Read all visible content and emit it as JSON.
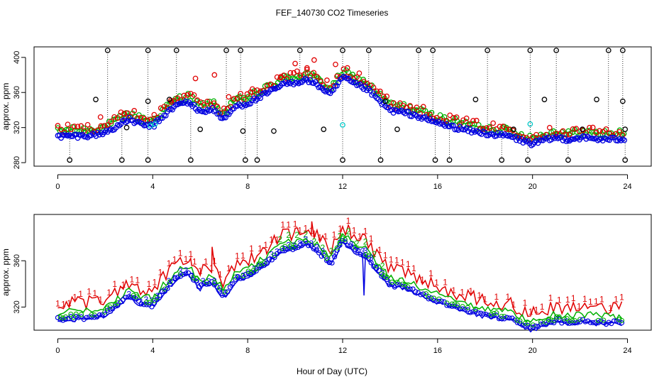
{
  "chart_data": {
    "title": "FEF_140730  CO2 Timeseries",
    "xlabel": "Hour of Day (UTC)",
    "colors": {
      "s1": "#e00000",
      "s2": "#00b000",
      "s3": "#0000e0",
      "ref": "#000000",
      "cal": "#00c8c8"
    },
    "panels": [
      {
        "type": "scatter",
        "ylabel": "approx. ppm",
        "xlim": [
          -1,
          25
        ],
        "ylim": [
          276,
          412
        ],
        "xticks": [
          0,
          4,
          8,
          12,
          16,
          20,
          24
        ],
        "yticks": [
          280,
          320,
          360,
          400
        ],
        "base_series": {
          "hours": [
            0,
            0.5,
            1,
            1.5,
            2,
            2.5,
            3,
            3.5,
            4,
            4.5,
            5,
            5.5,
            6,
            6.5,
            7,
            7.5,
            8,
            8.5,
            9,
            9.5,
            10,
            10.5,
            11,
            11.5,
            12,
            12.5,
            13,
            13.5,
            14,
            14.5,
            15,
            15.5,
            16,
            16.5,
            17,
            17.5,
            18,
            18.5,
            19,
            19.5,
            20,
            20.5,
            21,
            21.5,
            22,
            22.5,
            23,
            23.5,
            23.8
          ],
          "ppm": [
            310,
            311,
            311,
            312,
            315,
            322,
            330,
            324,
            322,
            335,
            346,
            350,
            338,
            342,
            330,
            345,
            348,
            355,
            362,
            370,
            372,
            375,
            368,
            358,
            378,
            370,
            365,
            352,
            340,
            338,
            335,
            330,
            326,
            322,
            319,
            316,
            314,
            312,
            311,
            306,
            302,
            306,
            309,
            307,
            309,
            308,
            307,
            307,
            308
          ]
        },
        "red_spikes": [
          [
            1.8,
            332
          ],
          [
            2.8,
            336
          ],
          [
            4.8,
            349
          ],
          [
            5.8,
            376
          ],
          [
            6.6,
            380
          ],
          [
            7.2,
            355
          ],
          [
            8.2,
            364
          ],
          [
            9.4,
            378
          ],
          [
            10.0,
            393
          ],
          [
            10.5,
            388
          ],
          [
            10.8,
            397
          ],
          [
            11.7,
            392
          ],
          [
            12.2,
            388
          ],
          [
            12.7,
            382
          ]
        ],
        "cal_points": [
          [
            3.9,
            322
          ],
          [
            4.1,
            324
          ],
          [
            12.0,
            323
          ],
          [
            19.9,
            324
          ]
        ],
        "ref_high": [
          2.1,
          3.8,
          5.0,
          7.1,
          7.7,
          10.2,
          12.0,
          13.1,
          15.2,
          15.8,
          18.1,
          19.9,
          21.0,
          23.2,
          23.8
        ],
        "ref_low": [
          0.5,
          2.7,
          3.8,
          5.6,
          7.9,
          8.4,
          12.0,
          13.6,
          15.9,
          16.5,
          18.7,
          19.8,
          21.5,
          23.9
        ],
        "ref_mid": [
          [
            1.6,
            352
          ],
          [
            2.9,
            320
          ],
          [
            3.8,
            350
          ],
          [
            4.7,
            352
          ],
          [
            6.0,
            318
          ],
          [
            7.8,
            316
          ],
          [
            9.1,
            316
          ],
          [
            11.2,
            318
          ],
          [
            13.8,
            350
          ],
          [
            14.3,
            318
          ],
          [
            17.6,
            352
          ],
          [
            19.2,
            318
          ],
          [
            20.5,
            352
          ],
          [
            22.1,
            318
          ],
          [
            22.7,
            352
          ],
          [
            23.8,
            350
          ],
          [
            23.9,
            318
          ]
        ]
      },
      {
        "type": "line",
        "ylabel": "approx. ppm",
        "xlim": [
          -1,
          25
        ],
        "ylim": [
          300,
          400
        ],
        "xticks": [
          0,
          4,
          8,
          12,
          16,
          20,
          24
        ],
        "yticks": [
          320,
          360
        ],
        "series_labels": [
          "1",
          "2",
          "3"
        ],
        "spikes_high": [
          [
            5.6,
            362
          ],
          [
            6.5,
            372
          ],
          [
            8.8,
            366
          ],
          [
            10.0,
            388
          ],
          [
            10.7,
            394
          ],
          [
            11.9,
            384
          ],
          [
            12.3,
            388
          ]
        ],
        "dip_low": [
          [
            12.9,
            330
          ]
        ]
      }
    ]
  }
}
